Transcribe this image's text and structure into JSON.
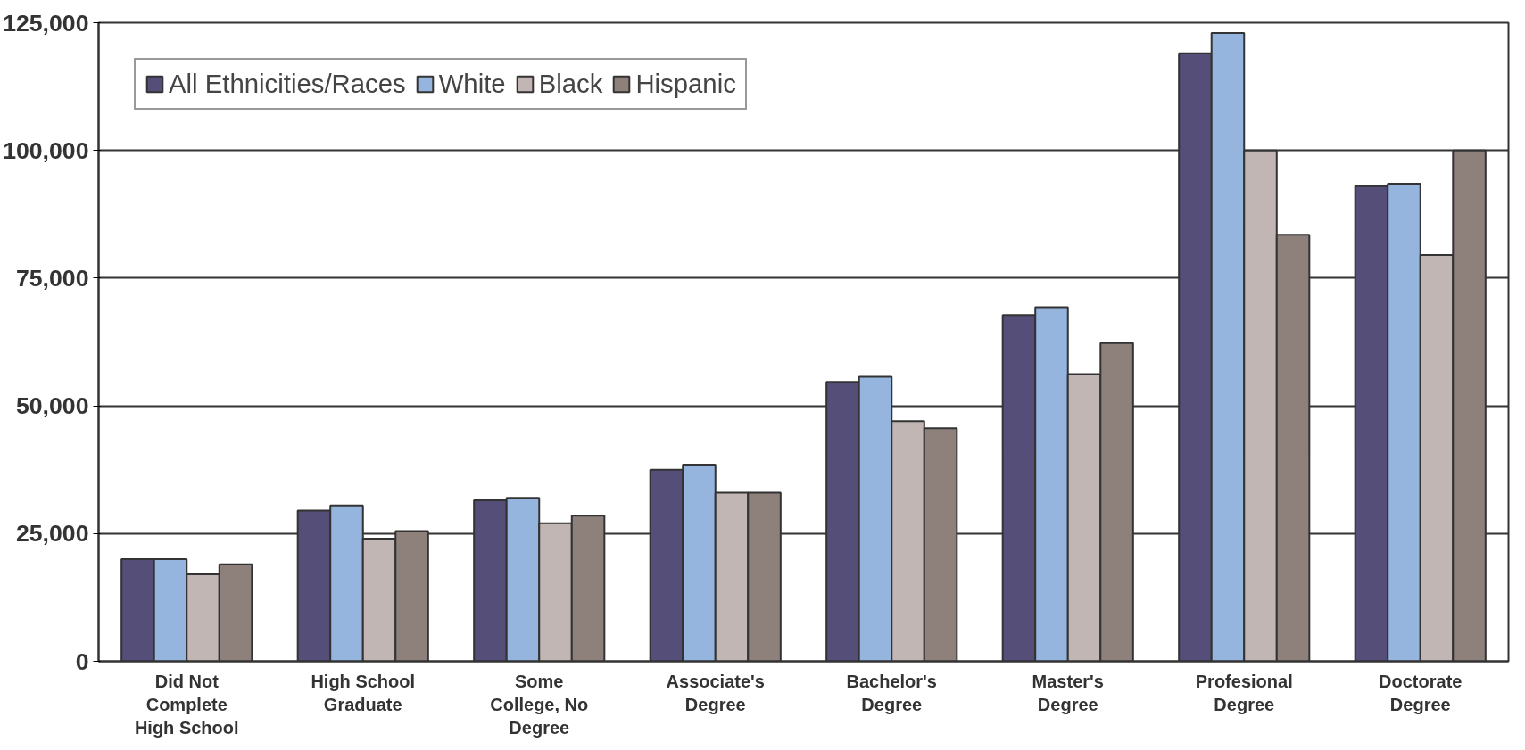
{
  "chart_data": {
    "type": "bar",
    "categories": [
      "Did Not\nComplete\nHigh School",
      "High School\nGraduate",
      "Some\nCollege, No\nDegree",
      "Associate's\nDegree",
      "Bachelor's\nDegree",
      "Master's\nDegree",
      "Profesional\nDegree",
      "Doctorate\nDegree"
    ],
    "series": [
      {
        "name": "All Ethnicities/Races",
        "color": "#544e78",
        "values": [
          20000,
          29500,
          31500,
          37500,
          54700,
          67800,
          119000,
          93000
        ]
      },
      {
        "name": "White",
        "color": "#95b5df",
        "values": [
          20000,
          30500,
          32000,
          38500,
          55700,
          69300,
          123000,
          93500
        ]
      },
      {
        "name": "Black",
        "color": "#c1b6b3",
        "values": [
          17000,
          24000,
          27000,
          33000,
          47000,
          56200,
          100000,
          79500
        ]
      },
      {
        "name": "Hispanic",
        "color": "#8e817c",
        "values": [
          19000,
          25500,
          28500,
          33000,
          45600,
          62300,
          83500,
          100000
        ]
      }
    ],
    "ylim": [
      0,
      125000
    ],
    "yticks": [
      0,
      {
        "value": 25000,
        "label": "25,000"
      },
      {
        "value": 50000,
        "label": "50,000"
      },
      {
        "value": 75000,
        "label": "75,000"
      },
      {
        "value": 100000,
        "label": "100,000"
      },
      {
        "value": 125000,
        "label": "125,000"
      }
    ],
    "grid": "y",
    "legend": "top left"
  }
}
